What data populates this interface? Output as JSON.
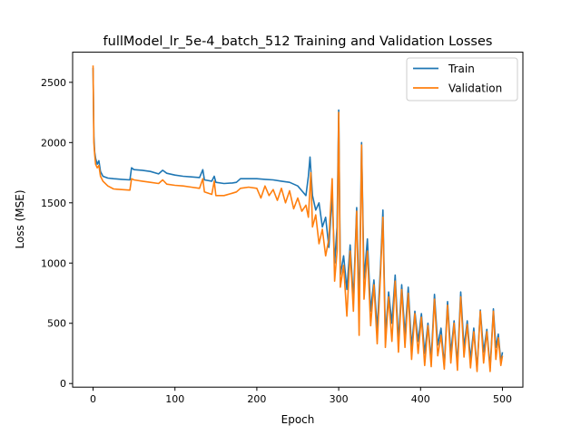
{
  "chart_data": {
    "type": "line",
    "title": "fullModel_lr_5e-4_batch_512 Training and Validation Losses",
    "xlabel": "Epoch",
    "ylabel": "Loss (MSE)",
    "xlim": [
      -25,
      525
    ],
    "ylim": [
      -30,
      2750
    ],
    "xticks": [
      0,
      100,
      200,
      300,
      400,
      500
    ],
    "yticks": [
      0,
      500,
      1000,
      1500,
      2000,
      2500
    ],
    "grid": false,
    "legend_position": "upper right",
    "series": [
      {
        "name": "Train",
        "color": "#1f77b4",
        "points": [
          [
            0,
            2620
          ],
          [
            1,
            2050
          ],
          [
            2,
            1920
          ],
          [
            3,
            1870
          ],
          [
            5,
            1820
          ],
          [
            7,
            1850
          ],
          [
            9,
            1760
          ],
          [
            12,
            1720
          ],
          [
            18,
            1705
          ],
          [
            25,
            1700
          ],
          [
            35,
            1695
          ],
          [
            45,
            1690
          ],
          [
            47,
            1790
          ],
          [
            50,
            1775
          ],
          [
            60,
            1770
          ],
          [
            70,
            1760
          ],
          [
            80,
            1740
          ],
          [
            85,
            1770
          ],
          [
            90,
            1745
          ],
          [
            100,
            1730
          ],
          [
            110,
            1720
          ],
          [
            120,
            1715
          ],
          [
            130,
            1710
          ],
          [
            134,
            1775
          ],
          [
            136,
            1690
          ],
          [
            145,
            1680
          ],
          [
            148,
            1720
          ],
          [
            150,
            1670
          ],
          [
            160,
            1660
          ],
          [
            170,
            1665
          ],
          [
            175,
            1670
          ],
          [
            180,
            1700
          ],
          [
            190,
            1700
          ],
          [
            200,
            1700
          ],
          [
            210,
            1695
          ],
          [
            220,
            1690
          ],
          [
            230,
            1680
          ],
          [
            240,
            1670
          ],
          [
            250,
            1640
          ],
          [
            255,
            1600
          ],
          [
            260,
            1560
          ],
          [
            263,
            1720
          ],
          [
            265,
            1880
          ],
          [
            268,
            1560
          ],
          [
            272,
            1440
          ],
          [
            276,
            1500
          ],
          [
            280,
            1300
          ],
          [
            284,
            1380
          ],
          [
            288,
            1130
          ],
          [
            292,
            1560
          ],
          [
            295,
            1000
          ],
          [
            298,
            1300
          ],
          [
            300,
            2270
          ],
          [
            302,
            900
          ],
          [
            306,
            1060
          ],
          [
            310,
            780
          ],
          [
            314,
            1150
          ],
          [
            318,
            700
          ],
          [
            322,
            1460
          ],
          [
            325,
            600
          ],
          [
            328,
            2000
          ],
          [
            331,
            860
          ],
          [
            335,
            1200
          ],
          [
            339,
            600
          ],
          [
            343,
            860
          ],
          [
            347,
            450
          ],
          [
            351,
            960
          ],
          [
            354,
            1440
          ],
          [
            357,
            400
          ],
          [
            361,
            760
          ],
          [
            365,
            500
          ],
          [
            369,
            900
          ],
          [
            373,
            350
          ],
          [
            377,
            820
          ],
          [
            381,
            400
          ],
          [
            385,
            800
          ],
          [
            389,
            300
          ],
          [
            393,
            600
          ],
          [
            397,
            350
          ],
          [
            401,
            580
          ],
          [
            405,
            250
          ],
          [
            409,
            500
          ],
          [
            413,
            200
          ],
          [
            417,
            740
          ],
          [
            421,
            320
          ],
          [
            425,
            460
          ],
          [
            429,
            150
          ],
          [
            433,
            680
          ],
          [
            437,
            250
          ],
          [
            441,
            520
          ],
          [
            445,
            160
          ],
          [
            449,
            760
          ],
          [
            453,
            300
          ],
          [
            457,
            520
          ],
          [
            461,
            200
          ],
          [
            465,
            460
          ],
          [
            469,
            120
          ],
          [
            473,
            610
          ],
          [
            477,
            260
          ],
          [
            481,
            450
          ],
          [
            485,
            130
          ],
          [
            489,
            620
          ],
          [
            492,
            300
          ],
          [
            495,
            410
          ],
          [
            498,
            180
          ],
          [
            500,
            260
          ]
        ]
      },
      {
        "name": "Validation",
        "color": "#ff7f0e",
        "points": [
          [
            0,
            2640
          ],
          [
            1,
            2000
          ],
          [
            2,
            1900
          ],
          [
            3,
            1820
          ],
          [
            5,
            1790
          ],
          [
            7,
            1810
          ],
          [
            9,
            1720
          ],
          [
            12,
            1680
          ],
          [
            18,
            1640
          ],
          [
            25,
            1615
          ],
          [
            35,
            1610
          ],
          [
            45,
            1605
          ],
          [
            47,
            1700
          ],
          [
            50,
            1690
          ],
          [
            60,
            1680
          ],
          [
            70,
            1670
          ],
          [
            80,
            1660
          ],
          [
            85,
            1690
          ],
          [
            90,
            1655
          ],
          [
            100,
            1645
          ],
          [
            110,
            1640
          ],
          [
            120,
            1630
          ],
          [
            130,
            1620
          ],
          [
            134,
            1700
          ],
          [
            136,
            1590
          ],
          [
            145,
            1570
          ],
          [
            148,
            1680
          ],
          [
            150,
            1560
          ],
          [
            160,
            1560
          ],
          [
            170,
            1580
          ],
          [
            175,
            1590
          ],
          [
            180,
            1620
          ],
          [
            190,
            1630
          ],
          [
            200,
            1620
          ],
          [
            205,
            1540
          ],
          [
            210,
            1640
          ],
          [
            215,
            1560
          ],
          [
            220,
            1610
          ],
          [
            225,
            1520
          ],
          [
            230,
            1620
          ],
          [
            235,
            1500
          ],
          [
            240,
            1600
          ],
          [
            245,
            1450
          ],
          [
            250,
            1540
          ],
          [
            255,
            1430
          ],
          [
            260,
            1480
          ],
          [
            263,
            1380
          ],
          [
            266,
            1750
          ],
          [
            268,
            1300
          ],
          [
            272,
            1400
          ],
          [
            276,
            1160
          ],
          [
            280,
            1280
          ],
          [
            284,
            1060
          ],
          [
            288,
            1200
          ],
          [
            292,
            1700
          ],
          [
            295,
            850
          ],
          [
            298,
            1100
          ],
          [
            300,
            2250
          ],
          [
            302,
            800
          ],
          [
            306,
            980
          ],
          [
            310,
            560
          ],
          [
            314,
            1100
          ],
          [
            318,
            600
          ],
          [
            322,
            1430
          ],
          [
            325,
            400
          ],
          [
            328,
            1980
          ],
          [
            331,
            700
          ],
          [
            335,
            1100
          ],
          [
            339,
            480
          ],
          [
            343,
            820
          ],
          [
            347,
            330
          ],
          [
            351,
            900
          ],
          [
            354,
            1380
          ],
          [
            357,
            300
          ],
          [
            361,
            720
          ],
          [
            365,
            350
          ],
          [
            369,
            850
          ],
          [
            373,
            260
          ],
          [
            377,
            780
          ],
          [
            381,
            300
          ],
          [
            385,
            750
          ],
          [
            389,
            200
          ],
          [
            393,
            580
          ],
          [
            397,
            250
          ],
          [
            401,
            550
          ],
          [
            405,
            150
          ],
          [
            409,
            480
          ],
          [
            413,
            140
          ],
          [
            417,
            700
          ],
          [
            421,
            230
          ],
          [
            425,
            400
          ],
          [
            429,
            120
          ],
          [
            433,
            650
          ],
          [
            437,
            170
          ],
          [
            441,
            500
          ],
          [
            445,
            110
          ],
          [
            449,
            720
          ],
          [
            453,
            220
          ],
          [
            457,
            490
          ],
          [
            461,
            130
          ],
          [
            465,
            430
          ],
          [
            469,
            100
          ],
          [
            473,
            600
          ],
          [
            477,
            170
          ],
          [
            481,
            430
          ],
          [
            485,
            100
          ],
          [
            489,
            600
          ],
          [
            492,
            200
          ],
          [
            495,
            380
          ],
          [
            498,
            150
          ],
          [
            500,
            230
          ]
        ]
      }
    ]
  }
}
